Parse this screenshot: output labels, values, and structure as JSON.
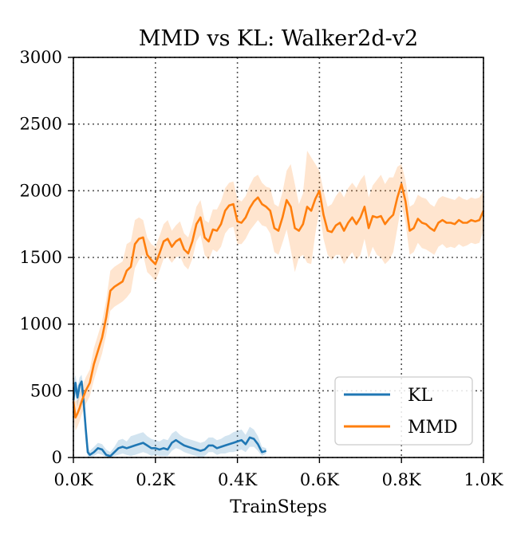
{
  "chart_data": {
    "type": "line",
    "title": "MMD vs KL: Walker2d-v2",
    "xlabel": "TrainSteps",
    "ylabel": "",
    "xlim": [
      0,
      1000
    ],
    "ylim": [
      0,
      3000
    ],
    "x_ticks": [
      0,
      200,
      400,
      600,
      800,
      1000
    ],
    "x_tick_labels": [
      "0.0K",
      "0.2K",
      "0.4K",
      "0.6K",
      "0.8K",
      "1.0K"
    ],
    "y_ticks": [
      0,
      500,
      1000,
      1500,
      2000,
      2500,
      3000
    ],
    "y_tick_labels": [
      "0",
      "500",
      "1000",
      "1500",
      "2000",
      "2500",
      "3000"
    ],
    "grid": true,
    "legend_position": "lower-right",
    "series": [
      {
        "name": "KL",
        "color": "#1f77b4",
        "x": [
          0,
          5,
          10,
          15,
          20,
          25,
          30,
          35,
          40,
          50,
          60,
          70,
          80,
          90,
          100,
          110,
          120,
          130,
          140,
          150,
          160,
          170,
          180,
          190,
          200,
          210,
          220,
          230,
          240,
          250,
          260,
          270,
          280,
          290,
          300,
          310,
          320,
          330,
          340,
          350,
          360,
          370,
          380,
          390,
          400,
          410,
          420,
          430,
          440,
          450,
          460,
          470
        ],
        "values": [
          430,
          560,
          450,
          540,
          570,
          420,
          220,
          40,
          20,
          40,
          70,
          60,
          20,
          10,
          40,
          70,
          80,
          70,
          80,
          90,
          100,
          110,
          90,
          70,
          70,
          60,
          70,
          60,
          110,
          130,
          110,
          90,
          80,
          70,
          60,
          50,
          60,
          90,
          90,
          70,
          80,
          90,
          100,
          110,
          120,
          130,
          100,
          150,
          140,
          100,
          40,
          50
        ],
        "upper": [
          560,
          620,
          520,
          600,
          620,
          520,
          320,
          80,
          50,
          80,
          110,
          100,
          60,
          40,
          80,
          130,
          140,
          120,
          160,
          170,
          180,
          190,
          160,
          140,
          130,
          120,
          140,
          130,
          180,
          200,
          170,
          150,
          140,
          130,
          120,
          110,
          120,
          150,
          150,
          130,
          140,
          160,
          170,
          190,
          200,
          210,
          170,
          230,
          210,
          160,
          80,
          70
        ],
        "lower": [
          300,
          480,
          380,
          460,
          500,
          320,
          120,
          0,
          0,
          10,
          30,
          20,
          0,
          0,
          10,
          20,
          30,
          20,
          10,
          20,
          30,
          40,
          30,
          10,
          20,
          10,
          10,
          10,
          50,
          70,
          60,
          40,
          30,
          20,
          10,
          0,
          10,
          40,
          40,
          20,
          30,
          30,
          40,
          40,
          50,
          60,
          40,
          80,
          80,
          50,
          10,
          30
        ]
      },
      {
        "name": "MMD",
        "color": "#ff7f0e",
        "x": [
          0,
          5,
          10,
          15,
          20,
          30,
          40,
          50,
          60,
          70,
          80,
          90,
          100,
          110,
          120,
          130,
          140,
          150,
          160,
          170,
          180,
          190,
          200,
          210,
          220,
          230,
          240,
          250,
          260,
          270,
          280,
          290,
          300,
          310,
          320,
          330,
          340,
          350,
          360,
          370,
          380,
          390,
          400,
          410,
          420,
          430,
          440,
          450,
          460,
          470,
          480,
          490,
          500,
          510,
          520,
          530,
          540,
          550,
          560,
          570,
          580,
          590,
          600,
          610,
          620,
          630,
          640,
          650,
          660,
          670,
          680,
          690,
          700,
          710,
          720,
          730,
          740,
          750,
          760,
          770,
          780,
          790,
          800,
          810,
          820,
          830,
          840,
          850,
          860,
          870,
          880,
          890,
          900,
          910,
          920,
          930,
          940,
          950,
          960,
          970,
          980,
          990,
          1000
        ],
        "values": [
          420,
          300,
          330,
          370,
          420,
          500,
          560,
          700,
          800,
          900,
          1050,
          1250,
          1280,
          1300,
          1320,
          1400,
          1430,
          1600,
          1640,
          1650,
          1520,
          1480,
          1450,
          1530,
          1620,
          1640,
          1580,
          1620,
          1640,
          1560,
          1530,
          1620,
          1750,
          1800,
          1650,
          1620,
          1710,
          1700,
          1750,
          1850,
          1890,
          1900,
          1770,
          1760,
          1800,
          1870,
          1920,
          1950,
          1900,
          1880,
          1850,
          1720,
          1700,
          1800,
          1930,
          1880,
          1720,
          1700,
          1750,
          1880,
          1850,
          1940,
          2000,
          1820,
          1700,
          1690,
          1740,
          1760,
          1700,
          1760,
          1800,
          1750,
          1800,
          1880,
          1720,
          1810,
          1800,
          1810,
          1750,
          1790,
          1820,
          1950,
          2050,
          1920,
          1700,
          1720,
          1790,
          1760,
          1750,
          1720,
          1700,
          1760,
          1780,
          1760,
          1760,
          1750,
          1780,
          1760,
          1760,
          1780,
          1770,
          1780,
          1850
        ],
        "upper": [
          520,
          420,
          430,
          470,
          520,
          600,
          660,
          820,
          920,
          1020,
          1180,
          1400,
          1430,
          1450,
          1470,
          1600,
          1620,
          1780,
          1800,
          1780,
          1650,
          1600,
          1580,
          1660,
          1750,
          1780,
          1700,
          1740,
          1770,
          1680,
          1650,
          1750,
          1880,
          1930,
          1780,
          1760,
          1860,
          1860,
          1920,
          2020,
          2060,
          2070,
          1940,
          1920,
          1960,
          2040,
          2100,
          2120,
          2060,
          2030,
          2020,
          1900,
          1880,
          1990,
          2150,
          2200,
          2050,
          1900,
          1980,
          2300,
          2250,
          2200,
          2150,
          2000,
          1880,
          1900,
          1960,
          2000,
          1950,
          2020,
          2060,
          2020,
          2080,
          2120,
          1950,
          2040,
          2080,
          2120,
          2050,
          2100,
          2100,
          2180,
          2200,
          2080,
          1880,
          1900,
          1970,
          1950,
          1940,
          1900,
          1880,
          1940,
          1960,
          1950,
          1940,
          1930,
          1960,
          1940,
          1930,
          1950,
          1940,
          1950,
          2000
        ],
        "lower": [
          320,
          200,
          230,
          270,
          320,
          400,
          460,
          580,
          680,
          780,
          920,
          1100,
          1130,
          1150,
          1170,
          1200,
          1240,
          1420,
          1480,
          1520,
          1390,
          1360,
          1320,
          1400,
          1490,
          1500,
          1460,
          1500,
          1510,
          1440,
          1410,
          1490,
          1620,
          1670,
          1520,
          1480,
          1560,
          1540,
          1580,
          1680,
          1720,
          1730,
          1600,
          1600,
          1640,
          1700,
          1740,
          1780,
          1740,
          1730,
          1680,
          1540,
          1520,
          1610,
          1710,
          1560,
          1390,
          1500,
          1520,
          1460,
          1450,
          1680,
          1850,
          1640,
          1520,
          1480,
          1520,
          1520,
          1450,
          1500,
          1540,
          1480,
          1520,
          1640,
          1490,
          1580,
          1520,
          1500,
          1450,
          1480,
          1540,
          1720,
          1900,
          1760,
          1520,
          1540,
          1610,
          1570,
          1560,
          1540,
          1520,
          1580,
          1600,
          1570,
          1580,
          1570,
          1600,
          1580,
          1590,
          1610,
          1600,
          1610,
          1700
        ]
      }
    ]
  }
}
